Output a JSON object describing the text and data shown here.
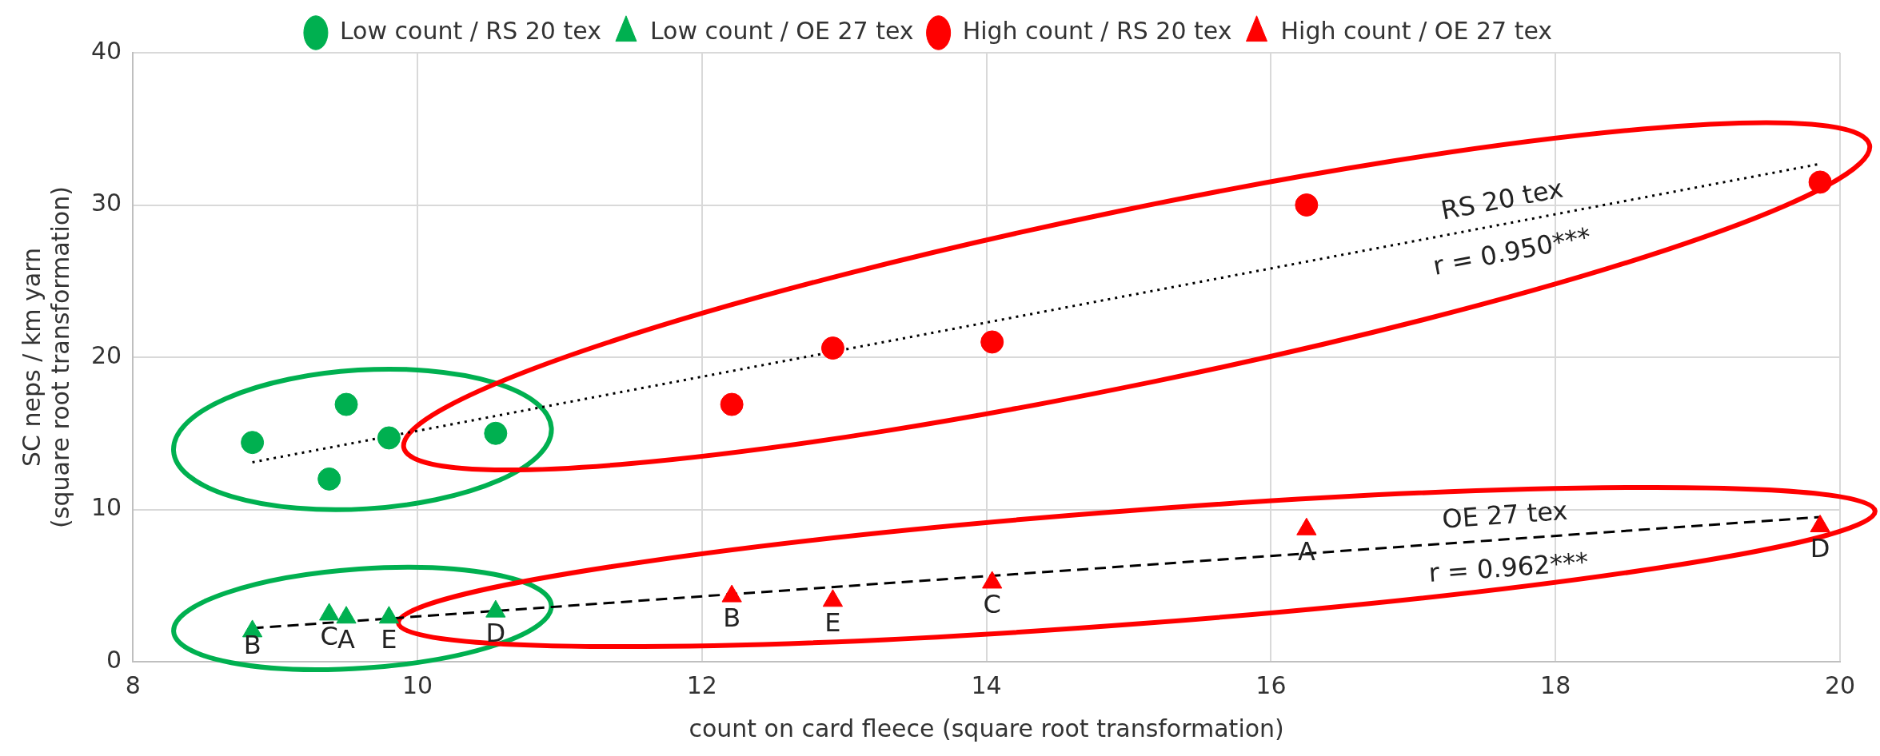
{
  "chart_data": {
    "type": "scatter",
    "xlabel": "count on card fleece (square root transformation)",
    "ylabel": "SC neps / km yarn\n(square root transformation)",
    "xlim": [
      8,
      20
    ],
    "xticks": [
      8,
      10,
      12,
      14,
      16,
      18,
      20
    ],
    "ylim": [
      0,
      40
    ],
    "yticks": [
      0,
      10,
      20,
      30,
      40
    ],
    "grid": true,
    "legend": "top",
    "series": [
      {
        "name": "Low count / RS 20 tex",
        "color": "#00b050",
        "marker": "circle",
        "x": [
          8.84,
          9.38,
          9.5,
          9.8,
          10.55
        ],
        "values": [
          14.4,
          12.0,
          16.9,
          14.7,
          15.0
        ]
      },
      {
        "name": "Low count / OE 27 tex",
        "color": "#00b050",
        "marker": "triangle",
        "x": [
          8.84,
          9.38,
          9.5,
          9.8,
          10.55
        ],
        "values": [
          2.0,
          3.1,
          2.9,
          2.9,
          3.3
        ],
        "value_labels": [
          "B",
          "C",
          "A",
          "E",
          "D"
        ]
      },
      {
        "name": "High count / RS 20 tex",
        "color": "#ff0000",
        "marker": "circle",
        "x": [
          12.21,
          12.92,
          14.04,
          16.25,
          19.86
        ],
        "values": [
          16.9,
          20.6,
          21.0,
          30.0,
          31.5
        ]
      },
      {
        "name": "High count / OE 27 tex",
        "color": "#ff0000",
        "marker": "triangle",
        "x": [
          12.21,
          12.92,
          14.04,
          16.25,
          19.86
        ],
        "values": [
          4.3,
          4.0,
          5.2,
          8.7,
          8.9
        ],
        "value_labels": [
          "B",
          "E",
          "C",
          "A",
          "D"
        ]
      },
      {
        "type": "line",
        "name": "RS 20 tex",
        "color": "#000000",
        "line_style": "dotted",
        "marker": "none",
        "x": [
          8.84,
          19.86
        ],
        "values": [
          13.1,
          32.7
        ]
      },
      {
        "type": "line",
        "name": "OE 27 tex",
        "color": "#000000",
        "line_style": "dashed",
        "marker": "none",
        "x": [
          8.84,
          19.86
        ],
        "values": [
          2.2,
          9.5
        ]
      }
    ],
    "annotations": [
      "r = 0.950***",
      "r = 0.962***"
    ]
  }
}
